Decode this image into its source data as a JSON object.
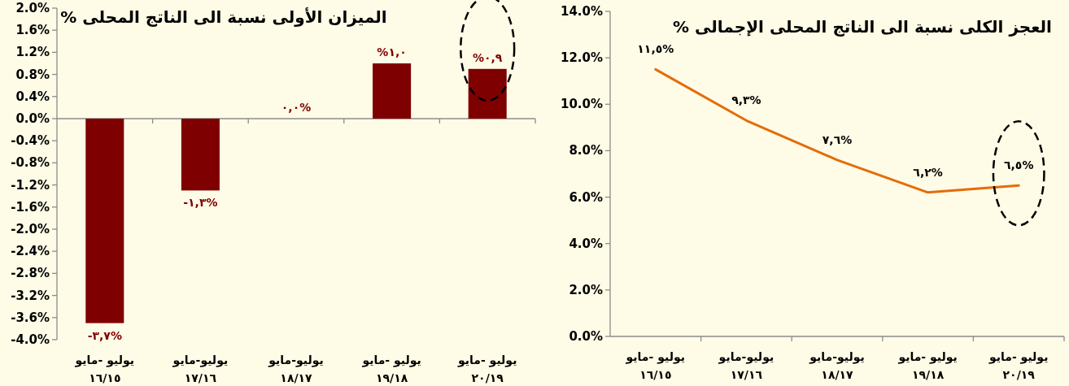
{
  "chart_data": [
    {
      "type": "bar",
      "title": "الميزان الأولى نسبة الى الناتج المحلى %",
      "categories": [
        "يوليو -مايو\n١٦/١٥",
        "يوليو-مايو\n١٧/١٦",
        "يوليو-مايو\n١٨/١٧",
        "يوليو -مايو\n١٩/١٨",
        "يوليو -مايو\n٢٠/١٩"
      ],
      "values": [
        -3.7,
        -1.3,
        0.0,
        1.0,
        0.9
      ],
      "value_labels": [
        "-٣,٧%",
        "-١,٣%",
        "٠,٠%",
        "%١,٠",
        "%٠,٩"
      ],
      "color": "#7f0000",
      "ylim": [
        -4.0,
        2.0
      ],
      "yticks": [
        {
          "value": -4.0,
          "label": "-4.0%"
        },
        {
          "value": -3.6,
          "label": "-3.6%"
        },
        {
          "value": -3.2,
          "label": "-3.2%"
        },
        {
          "value": -2.8,
          "label": "-2.8%"
        },
        {
          "value": -2.4,
          "label": "-2.4%"
        },
        {
          "value": -2.0,
          "label": "-2.0%"
        },
        {
          "value": -1.6,
          "label": "-1.6%"
        },
        {
          "value": -1.2,
          "label": "-1.2%"
        },
        {
          "value": -0.8,
          "label": "-0.8%"
        },
        {
          "value": -0.4,
          "label": "-0.4%"
        },
        {
          "value": 0.0,
          "label": "0.0%"
        },
        {
          "value": 0.4,
          "label": "0.4%"
        },
        {
          "value": 0.8,
          "label": "0.8%"
        },
        {
          "value": 1.2,
          "label": "1.2%"
        },
        {
          "value": 1.6,
          "label": "1.6%"
        },
        {
          "value": 2.0,
          "label": "2.0%"
        }
      ]
    },
    {
      "type": "line",
      "title": "العجز الكلى نسبة الى الناتج المحلى الإجمالى %",
      "categories": [
        "يوليو -مايو\n١٦/١٥",
        "يوليو-مايو\n١٧/١٦",
        "يوليو-مايو\n١٨/١٧",
        "يوليو -مايو\n١٩/١٨",
        "يوليو -مايو\n٢٠/١٩"
      ],
      "values": [
        11.5,
        9.3,
        7.6,
        6.2,
        6.5
      ],
      "value_labels": [
        "١١,٥%",
        "٩,٣%",
        "٧,٦%",
        "٦,٢%",
        "٦,٥%"
      ],
      "color": "#e46c0a",
      "marker": "none",
      "ylim": [
        0.0,
        14.0
      ],
      "yticks": [
        {
          "value": 0.0,
          "label": "0.0%"
        },
        {
          "value": 2.0,
          "label": "2.0%"
        },
        {
          "value": 4.0,
          "label": "4.0%"
        },
        {
          "value": 6.0,
          "label": "6.0%"
        },
        {
          "value": 8.0,
          "label": "8.0%"
        },
        {
          "value": 10.0,
          "label": "10.0%"
        },
        {
          "value": 12.0,
          "label": "12.0%"
        },
        {
          "value": 14.0,
          "label": "14.0%"
        }
      ]
    }
  ]
}
